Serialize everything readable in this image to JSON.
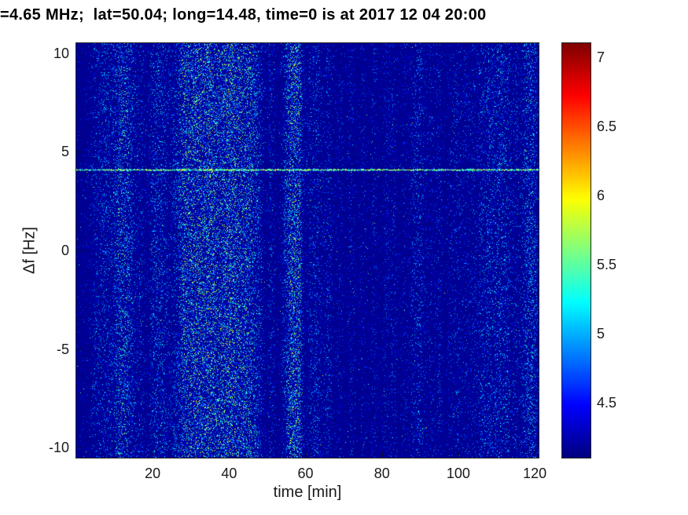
{
  "chart_data": {
    "type": "heatmap",
    "title": "=4.65 MHz;  lat=50.04; long=14.48, time=0 is at 2017 12 04 20:00",
    "xlabel": "time [min]",
    "ylabel": "Δf [Hz]",
    "x_range": [
      0,
      121
    ],
    "y_range": [
      -10.5,
      10.5
    ],
    "x_ticks": [
      20,
      40,
      60,
      80,
      100,
      120
    ],
    "y_ticks": [
      -10,
      -5,
      0,
      5,
      10
    ],
    "colormap": "jet",
    "clim": [
      4.1,
      7.1
    ],
    "colorbar_ticks": [
      4.5,
      5,
      5.5,
      6,
      6.5,
      7
    ],
    "legend_position": "right-colorbar",
    "grid": false,
    "background_value": 4.15,
    "features": {
      "spectral_line": {
        "delta_f_hz": 4.1,
        "value_range": [
          5.15,
          6.45
        ],
        "description": "bright speckled horizontal carrier line spanning full time axis"
      },
      "noise_bursts_format": "[time_min, sigma_min, strength]",
      "noise_bursts": [
        [
          5,
          1.2,
          0.3
        ],
        [
          8,
          1.5,
          0.45
        ],
        [
          11,
          0.8,
          0.3
        ],
        [
          13,
          1.8,
          0.75
        ],
        [
          17,
          0.8,
          0.3
        ],
        [
          20,
          0.8,
          0.25
        ],
        [
          22,
          1.5,
          0.55
        ],
        [
          26,
          1.2,
          0.4
        ],
        [
          28,
          0.8,
          0.35
        ],
        [
          30,
          1.8,
          0.85
        ],
        [
          33,
          1.5,
          0.65
        ],
        [
          35,
          0.8,
          0.4
        ],
        [
          37,
          1.8,
          0.8
        ],
        [
          40,
          1.2,
          0.7
        ],
        [
          43,
          1.8,
          0.85
        ],
        [
          46,
          1.2,
          0.6
        ],
        [
          48,
          0.8,
          0.4
        ],
        [
          51,
          0.8,
          0.35
        ],
        [
          55,
          0.9,
          0.6
        ],
        [
          57,
          1.0,
          1.0
        ],
        [
          58.5,
          0.7,
          0.6
        ],
        [
          61,
          0.7,
          0.3
        ],
        [
          63,
          1.0,
          0.45
        ],
        [
          66,
          0.8,
          0.4
        ],
        [
          69,
          0.6,
          0.25
        ],
        [
          72,
          0.7,
          0.25
        ],
        [
          75,
          0.6,
          0.2
        ],
        [
          78,
          0.7,
          0.25
        ],
        [
          81,
          0.6,
          0.25
        ],
        [
          83,
          0.8,
          0.3
        ],
        [
          86,
          0.6,
          0.2
        ],
        [
          88,
          0.7,
          0.25
        ],
        [
          90,
          1.0,
          0.45
        ],
        [
          93,
          0.6,
          0.25
        ],
        [
          95,
          0.7,
          0.3
        ],
        [
          98,
          0.6,
          0.25
        ],
        [
          100,
          0.8,
          0.35
        ],
        [
          102,
          0.6,
          0.25
        ],
        [
          104,
          0.8,
          0.3
        ],
        [
          106,
          0.6,
          0.3
        ],
        [
          108,
          1.2,
          0.5
        ],
        [
          111,
          1.2,
          0.55
        ],
        [
          113,
          0.7,
          0.35
        ],
        [
          115,
          0.7,
          0.3
        ],
        [
          118,
          1.2,
          0.6
        ],
        [
          120,
          0.9,
          0.5
        ]
      ]
    },
    "noise": {
      "base_density": 0.05,
      "burst_density_gain": 0.38,
      "seed": 20171204
    },
    "colors": {
      "figure_background": "#ffffff",
      "axes_text": "#1a1a1a",
      "title_text": "#000000",
      "base_pixel": "#000091"
    }
  }
}
